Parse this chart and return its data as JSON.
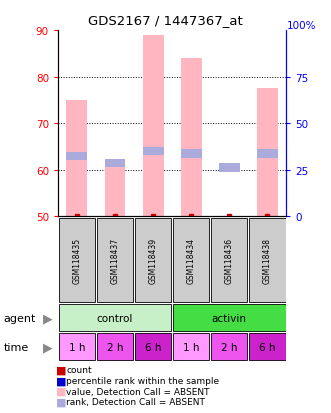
{
  "title": "GDS2167 / 1447367_at",
  "samples": [
    "GSM118435",
    "GSM118437",
    "GSM118439",
    "GSM118434",
    "GSM118436",
    "GSM118438"
  ],
  "bar_values": [
    75.0,
    60.5,
    89.0,
    84.0,
    49.5,
    77.5
  ],
  "rank_values": [
    63.0,
    61.5,
    64.0,
    63.5,
    60.5,
    63.5
  ],
  "count_values": [
    50.0,
    50.0,
    50.0,
    50.0,
    50.0,
    50.0
  ],
  "bar_color_absent": "#FFB6C1",
  "rank_color_absent": "#AAAADD",
  "count_color": "#CC0000",
  "ylim": [
    50,
    90
  ],
  "ylim_right": [
    0,
    100
  ],
  "yticks_left": [
    50,
    60,
    70,
    80,
    90
  ],
  "yticks_right": [
    0,
    25,
    50,
    75
  ],
  "yticks_right_labels": [
    "0",
    "25",
    "50",
    "75"
  ],
  "right_top_label": "100%",
  "bar_width": 0.55,
  "agent_control_color": "#C8F0C8",
  "agent_activin_color": "#44DD44",
  "time_colors": [
    "#FF99FF",
    "#EE55EE",
    "#CC22CC",
    "#FF99FF",
    "#EE55EE",
    "#CC22CC"
  ],
  "time_labels": [
    "1 h",
    "2 h",
    "6 h",
    "1 h",
    "2 h",
    "6 h"
  ],
  "sample_box_color": "#CCCCCC",
  "grid_yticks": [
    60,
    70,
    80
  ],
  "legend_items": [
    {
      "color": "#CC0000",
      "label": "count"
    },
    {
      "color": "#0000CC",
      "label": "percentile rank within the sample"
    },
    {
      "color": "#FFB6C1",
      "label": "value, Detection Call = ABSENT"
    },
    {
      "color": "#AAAADD",
      "label": "rank, Detection Call = ABSENT"
    }
  ]
}
